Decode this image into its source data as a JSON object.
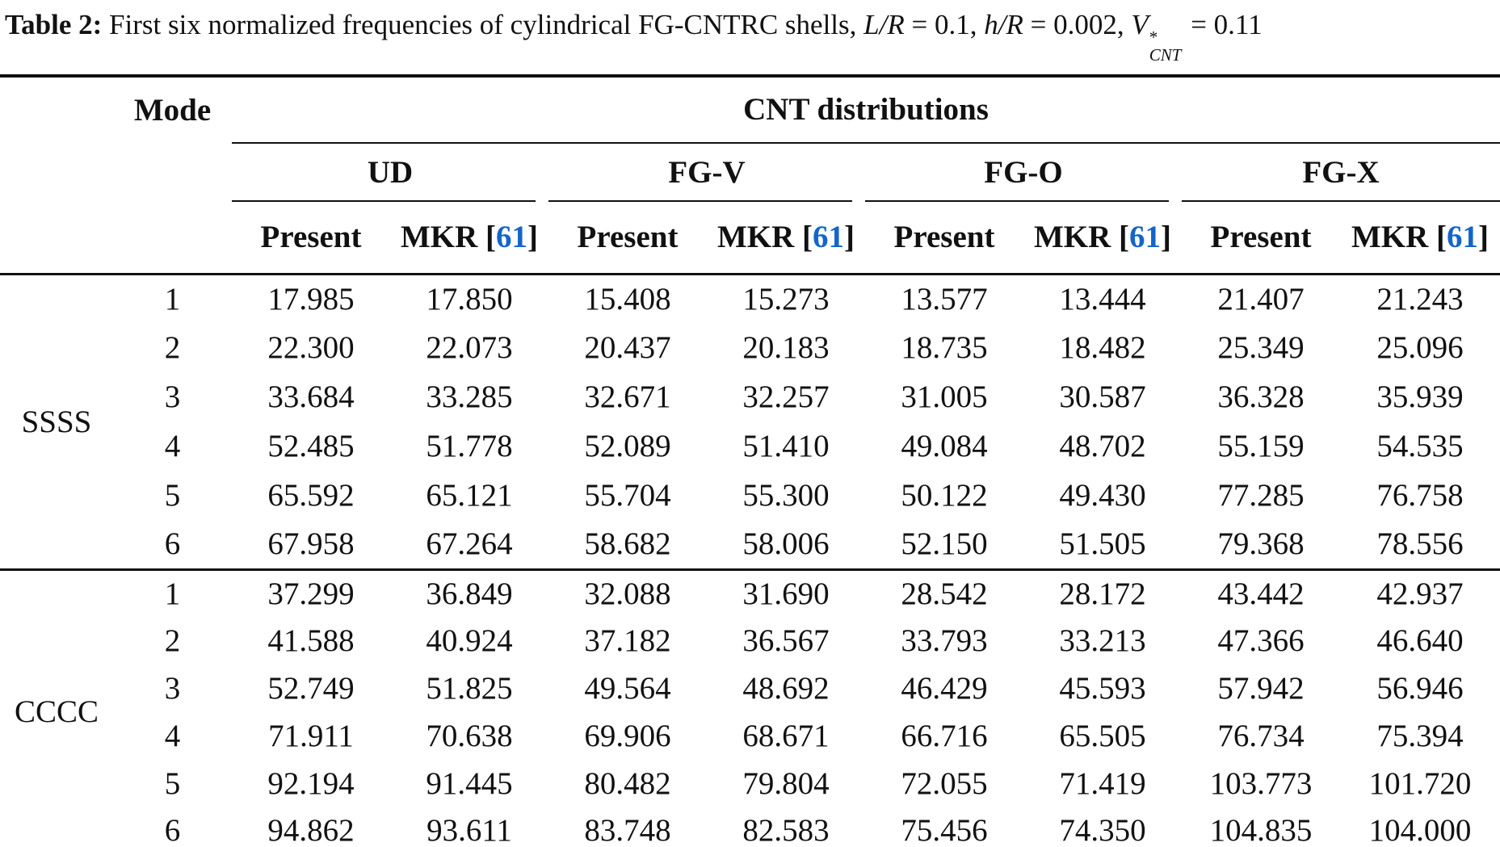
{
  "caption": {
    "label": "Table 2:",
    "body": " First six normalized frequencies of cylindrical FG-CNTRC shells, ",
    "math": [
      {
        "var": "L/R",
        "rest": " = 0.1, "
      },
      {
        "var": "h/R",
        "rest": " = 0.002, "
      },
      {
        "var": "V",
        "sup": "*",
        "sub": "CNT",
        "rest": " = 0.11"
      }
    ]
  },
  "header": {
    "mode_label": "Mode",
    "cnt_label": "CNT distributions",
    "groups": [
      "UD",
      "FG-V",
      "FG-O",
      "FG-X"
    ],
    "sub": {
      "present": "Present",
      "mkr_prefix": "MKR [",
      "mkr_cite": "61",
      "mkr_suffix": "]"
    }
  },
  "table": {
    "sections": [
      {
        "label": "SSSS",
        "rows": [
          {
            "mode": "1",
            "values": [
              "17.985",
              "17.850",
              "15.408",
              "15.273",
              "13.577",
              "13.444",
              "21.407",
              "21.243"
            ]
          },
          {
            "mode": "2",
            "values": [
              "22.300",
              "22.073",
              "20.437",
              "20.183",
              "18.735",
              "18.482",
              "25.349",
              "25.096"
            ]
          },
          {
            "mode": "3",
            "values": [
              "33.684",
              "33.285",
              "32.671",
              "32.257",
              "31.005",
              "30.587",
              "36.328",
              "35.939"
            ]
          },
          {
            "mode": "4",
            "values": [
              "52.485",
              "51.778",
              "52.089",
              "51.410",
              "49.084",
              "48.702",
              "55.159",
              "54.535"
            ]
          },
          {
            "mode": "5",
            "values": [
              "65.592",
              "65.121",
              "55.704",
              "55.300",
              "50.122",
              "49.430",
              "77.285",
              "76.758"
            ]
          },
          {
            "mode": "6",
            "values": [
              "67.958",
              "67.264",
              "58.682",
              "58.006",
              "52.150",
              "51.505",
              "79.368",
              "78.556"
            ]
          }
        ]
      },
      {
        "label": "CCCC",
        "rows": [
          {
            "mode": "1",
            "values": [
              "37.299",
              "36.849",
              "32.088",
              "31.690",
              "28.542",
              "28.172",
              "43.442",
              "42.937"
            ]
          },
          {
            "mode": "2",
            "values": [
              "41.588",
              "40.924",
              "37.182",
              "36.567",
              "33.793",
              "33.213",
              "47.366",
              "46.640"
            ]
          },
          {
            "mode": "3",
            "values": [
              "52.749",
              "51.825",
              "49.564",
              "48.692",
              "46.429",
              "45.593",
              "57.942",
              "56.946"
            ]
          },
          {
            "mode": "4",
            "values": [
              "71.911",
              "70.638",
              "69.906",
              "68.671",
              "66.716",
              "65.505",
              "76.734",
              "75.394"
            ]
          },
          {
            "mode": "5",
            "values": [
              "92.194",
              "91.445",
              "80.482",
              "79.804",
              "72.055",
              "71.419",
              "103.773",
              "101.720"
            ]
          },
          {
            "mode": "6",
            "values": [
              "94.862",
              "93.611",
              "83.748",
              "82.583",
              "75.456",
              "74.350",
              "104.835",
              "104.000"
            ]
          }
        ]
      }
    ]
  }
}
